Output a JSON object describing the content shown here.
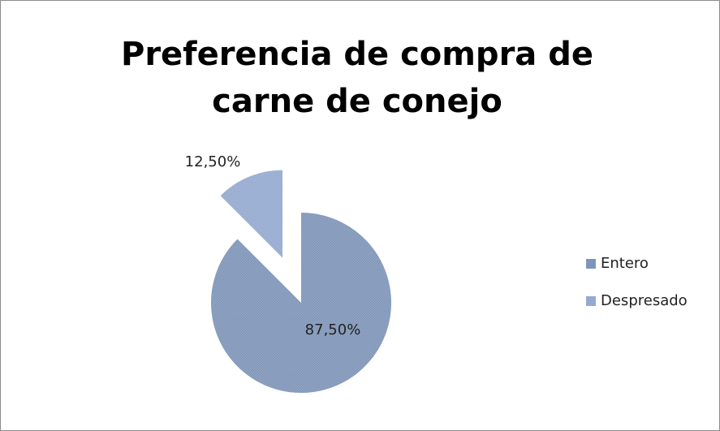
{
  "chart_data": {
    "type": "pie",
    "title": "Preferencia de compra de carne de conejo",
    "categories": [
      "Entero",
      "Despresado"
    ],
    "values": [
      87.5,
      12.5
    ],
    "value_labels": [
      "87,50%",
      "12,50%"
    ],
    "colors": [
      "#7f95b8",
      "#95aad0"
    ],
    "legend": "right"
  }
}
